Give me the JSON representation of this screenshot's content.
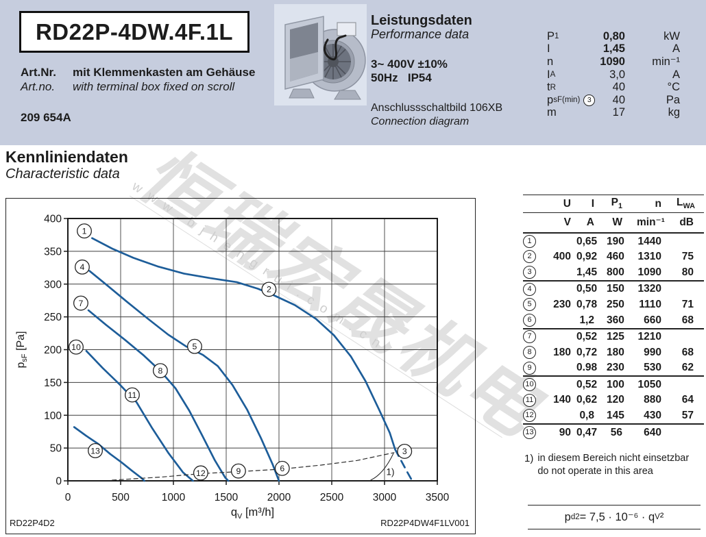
{
  "header": {
    "title": "RD22P-4DW.4F.1L",
    "art_label_de": "Art.Nr.",
    "art_text_de": "mit Klemmenkasten am Gehäuse",
    "art_label_en": "Art.no.",
    "art_text_en": "with terminal box fixed on scroll",
    "art_number": "209 654A"
  },
  "performance": {
    "heading_de": "Leistungsdaten",
    "heading_en": "Performance data",
    "supply_line1": "3~ 400V ±10%",
    "supply_line2": "50Hz   IP54",
    "connection_de": "Anschlussschaltbild 106XB",
    "connection_en": "Connection diagram",
    "rows": [
      {
        "label": [
          "P",
          [
            "1"
          ]
        ],
        "value": "0,80",
        "unit": "kW",
        "bold": true
      },
      {
        "label": [
          "I"
        ],
        "value": "1,45",
        "unit": "A",
        "bold": true
      },
      {
        "label": [
          "n"
        ],
        "value": "1090",
        "unit": "min⁻¹",
        "bold": true
      },
      {
        "label": [
          "I",
          [
            "A"
          ]
        ],
        "value": "3,0",
        "unit": "A",
        "bold": false
      },
      {
        "label": [
          "t",
          [
            "R"
          ]
        ],
        "value": "40",
        "unit": "°C",
        "bold": false
      },
      {
        "label": [
          "p",
          [
            "sF(min)"
          ]
        ],
        "circ": "3",
        "value": "40",
        "unit": "Pa",
        "bold": false
      },
      {
        "label": [
          "m"
        ],
        "value": "17",
        "unit": "kg",
        "bold": false
      }
    ]
  },
  "section": {
    "heading_de": "Kennliniendaten",
    "heading_en": "Characteristic data"
  },
  "chart_data": {
    "type": "line",
    "xlabel": [
      "q",
      [
        "V"
      ],
      " [m³/h]"
    ],
    "ylabel": [
      "p",
      [
        "sF"
      ],
      " [Pa]"
    ],
    "xlim": [
      0,
      3500
    ],
    "ylim": [
      0,
      400
    ],
    "xticks": [
      0,
      500,
      1000,
      1500,
      2000,
      2500,
      3000,
      3500
    ],
    "yticks": [
      0,
      50,
      100,
      150,
      200,
      250,
      300,
      350,
      400
    ],
    "grid": true,
    "curve_color": "#1d5d99",
    "series": [
      {
        "name": "400V curve (points 1-2-3)",
        "style": "solid",
        "points": [
          [
            230,
            370
          ],
          [
            420,
            354
          ],
          [
            620,
            340
          ],
          [
            850,
            327
          ],
          [
            1100,
            316
          ],
          [
            1350,
            309
          ],
          [
            1600,
            303
          ],
          [
            1800,
            293
          ],
          [
            1950,
            283
          ],
          [
            2150,
            268
          ],
          [
            2350,
            247
          ],
          [
            2520,
            222
          ],
          [
            2680,
            190
          ],
          [
            2820,
            152
          ],
          [
            2950,
            108
          ],
          [
            3050,
            73
          ],
          [
            3100,
            48
          ]
        ]
      },
      {
        "name": "400V curve extension (below p_sF min)",
        "style": "blue-dashed",
        "points": [
          [
            3100,
            48
          ],
          [
            3160,
            30
          ],
          [
            3220,
            12
          ],
          [
            3255,
            2
          ]
        ]
      },
      {
        "name": "230V curve (points 4-5-6)",
        "style": "solid",
        "points": [
          [
            205,
            320
          ],
          [
            380,
            297
          ],
          [
            560,
            273
          ],
          [
            760,
            247
          ],
          [
            950,
            223
          ],
          [
            1120,
            205
          ],
          [
            1280,
            192
          ],
          [
            1420,
            175
          ],
          [
            1560,
            146
          ],
          [
            1700,
            108
          ],
          [
            1830,
            65
          ],
          [
            1940,
            25
          ],
          [
            2000,
            0
          ]
        ]
      },
      {
        "name": "180V curve (points 7-8-9)",
        "style": "solid",
        "points": [
          [
            195,
            260
          ],
          [
            360,
            238
          ],
          [
            540,
            215
          ],
          [
            720,
            191
          ],
          [
            880,
            167
          ],
          [
            1020,
            141
          ],
          [
            1150,
            107
          ],
          [
            1270,
            70
          ],
          [
            1390,
            32
          ],
          [
            1490,
            5
          ],
          [
            1520,
            0
          ]
        ]
      },
      {
        "name": "140V curve (points 10-11-12)",
        "style": "solid",
        "points": [
          [
            175,
            198
          ],
          [
            330,
            172
          ],
          [
            490,
            147
          ],
          [
            650,
            120
          ],
          [
            800,
            80
          ],
          [
            950,
            43
          ],
          [
            1090,
            13
          ],
          [
            1185,
            0
          ]
        ]
      },
      {
        "name": "90V curve (point 13)",
        "style": "solid",
        "points": [
          [
            60,
            82
          ],
          [
            170,
            69
          ],
          [
            290,
            56
          ],
          [
            400,
            41
          ],
          [
            510,
            28
          ],
          [
            610,
            15
          ],
          [
            700,
            4
          ],
          [
            725,
            0
          ]
        ]
      },
      {
        "name": "dynamic pressure line p_d2",
        "style": "thin-dashed",
        "points": [
          [
            420,
            1
          ],
          [
            900,
            6
          ],
          [
            1259,
            11
          ],
          [
            1616,
            14
          ],
          [
            2031,
            18
          ],
          [
            2400,
            24
          ],
          [
            2740,
            31
          ],
          [
            3090,
            43
          ]
        ]
      }
    ],
    "point_labels": [
      {
        "n": "1",
        "qv": 156,
        "pa": 381
      },
      {
        "n": "2",
        "qv": 1905,
        "pa": 292
      },
      {
        "n": "3",
        "qv": 3190,
        "pa": 45
      },
      {
        "n": "4",
        "qv": 136,
        "pa": 326
      },
      {
        "n": "5",
        "qv": 1201,
        "pa": 205
      },
      {
        "n": "6",
        "qv": 2031,
        "pa": 19
      },
      {
        "n": "7",
        "qv": 123,
        "pa": 271
      },
      {
        "n": "8",
        "qv": 876,
        "pa": 168
      },
      {
        "n": "9",
        "qv": 1616,
        "pa": 15
      },
      {
        "n": "10",
        "qv": 78,
        "pa": 204
      },
      {
        "n": "11",
        "qv": 610,
        "pa": 131
      },
      {
        "n": "12",
        "qv": 1259,
        "pa": 12
      },
      {
        "n": "13",
        "qv": 260,
        "pa": 46
      }
    ],
    "annotation": {
      "text": "1)",
      "qv": 3055,
      "pa": 14,
      "line": [
        [
          2868,
          1
        ],
        [
          2990,
          10
        ],
        [
          3085,
          42
        ]
      ]
    },
    "corner_left": "RD22P4D2",
    "corner_right": "RD22P4DW4F1LV001"
  },
  "side_table": {
    "headers": [
      [
        "U"
      ],
      [
        "I"
      ],
      [
        "P",
        [
          "1"
        ]
      ],
      [
        "n"
      ],
      [
        "L",
        [
          "WA"
        ]
      ]
    ],
    "units": [
      "V",
      "A",
      "W",
      "min⁻¹",
      "dB"
    ],
    "rows": [
      {
        "n": "1",
        "u": "",
        "i": "0,65",
        "p1": "190",
        "rpm": "1440",
        "lwa": "",
        "gend": false
      },
      {
        "n": "2",
        "u": "400",
        "i": "0,92",
        "p1": "460",
        "rpm": "1310",
        "lwa": "75",
        "gend": false
      },
      {
        "n": "3",
        "u": "",
        "i": "1,45",
        "p1": "800",
        "rpm": "1090",
        "lwa": "80",
        "gend": true
      },
      {
        "n": "4",
        "u": "",
        "i": "0,50",
        "p1": "150",
        "rpm": "1320",
        "lwa": "",
        "gend": false
      },
      {
        "n": "5",
        "u": "230",
        "i": "0,78",
        "p1": "250",
        "rpm": "1110",
        "lwa": "71",
        "gend": false
      },
      {
        "n": "6",
        "u": "",
        "i": "1,2",
        "p1": "360",
        "rpm": "660",
        "lwa": "68",
        "gend": true
      },
      {
        "n": "7",
        "u": "",
        "i": "0,52",
        "p1": "125",
        "rpm": "1210",
        "lwa": "",
        "gend": false
      },
      {
        "n": "8",
        "u": "180",
        "i": "0,72",
        "p1": "180",
        "rpm": "990",
        "lwa": "68",
        "gend": false
      },
      {
        "n": "9",
        "u": "",
        "i": "0.98",
        "p1": "230",
        "rpm": "530",
        "lwa": "62",
        "gend": true
      },
      {
        "n": "10",
        "u": "",
        "i": "0,52",
        "p1": "100",
        "rpm": "1050",
        "lwa": "",
        "gend": false
      },
      {
        "n": "11",
        "u": "140",
        "i": "0,62",
        "p1": "120",
        "rpm": "880",
        "lwa": "64",
        "gend": false
      },
      {
        "n": "12",
        "u": "",
        "i": "0,8",
        "p1": "145",
        "rpm": "430",
        "lwa": "57",
        "gend": true
      },
      {
        "n": "13",
        "u": "90",
        "i": "0,47",
        "p1": "56",
        "rpm": "640",
        "lwa": "",
        "gend": false
      }
    ]
  },
  "footnote": {
    "marker": "1)",
    "line1": "in diesem Bereich nicht einsetzbar",
    "line2": "do not operate in this area"
  },
  "formula": [
    "p",
    [
      "d2"
    ],
    " = 7,5 · 10⁻⁶ · q",
    [
      "V"
    ],
    "²"
  ],
  "watermark": {
    "letters": "www.bjhengrui.com.cn",
    "cjk": "恒瑞宏晟机电"
  },
  "colors": {
    "band": "#c6cdde",
    "curve_blue": "#1d5d99",
    "grid": "#3c3c3c",
    "frame": "#1a1a1a"
  }
}
